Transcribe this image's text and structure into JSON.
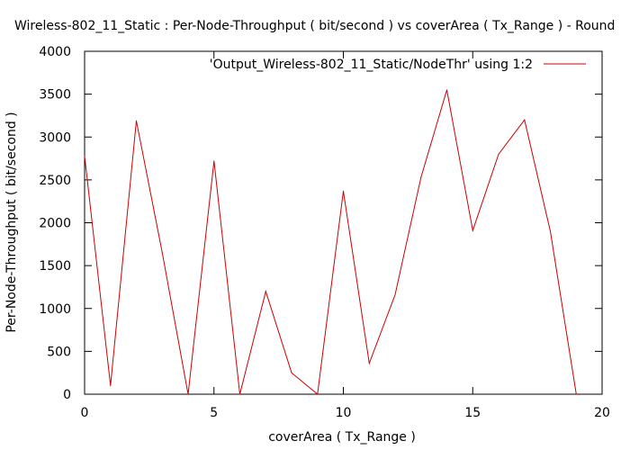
{
  "chart_data": {
    "type": "line",
    "title": "Wireless-802_11_Static : Per-Node-Throughput ( bit/second ) vs coverArea ( Tx_Range ) - Round",
    "xlabel": "coverArea ( Tx_Range )",
    "ylabel": "Per-Node-Throughput ( bit/second )",
    "xlim": [
      0,
      20
    ],
    "ylim": [
      0,
      4000
    ],
    "xticks": [
      0,
      5,
      10,
      15,
      20
    ],
    "yticks": [
      0,
      500,
      1000,
      1500,
      2000,
      2500,
      3000,
      3500,
      4000
    ],
    "grid": false,
    "legend_position": "top-right",
    "series": [
      {
        "name": "'Output_Wireless-802_11_Static/NodeThr' using 1:2",
        "color": "#cc0000",
        "x": [
          0,
          1,
          2,
          3,
          4,
          5,
          6,
          7,
          8,
          9,
          10,
          11,
          12,
          13,
          14,
          15,
          16,
          17,
          18,
          19
        ],
        "y": [
          2780,
          100,
          3190,
          1650,
          0,
          2720,
          0,
          1200,
          250,
          0,
          2370,
          360,
          1160,
          2530,
          3550,
          1910,
          2800,
          3200,
          1900,
          0
        ]
      }
    ]
  }
}
